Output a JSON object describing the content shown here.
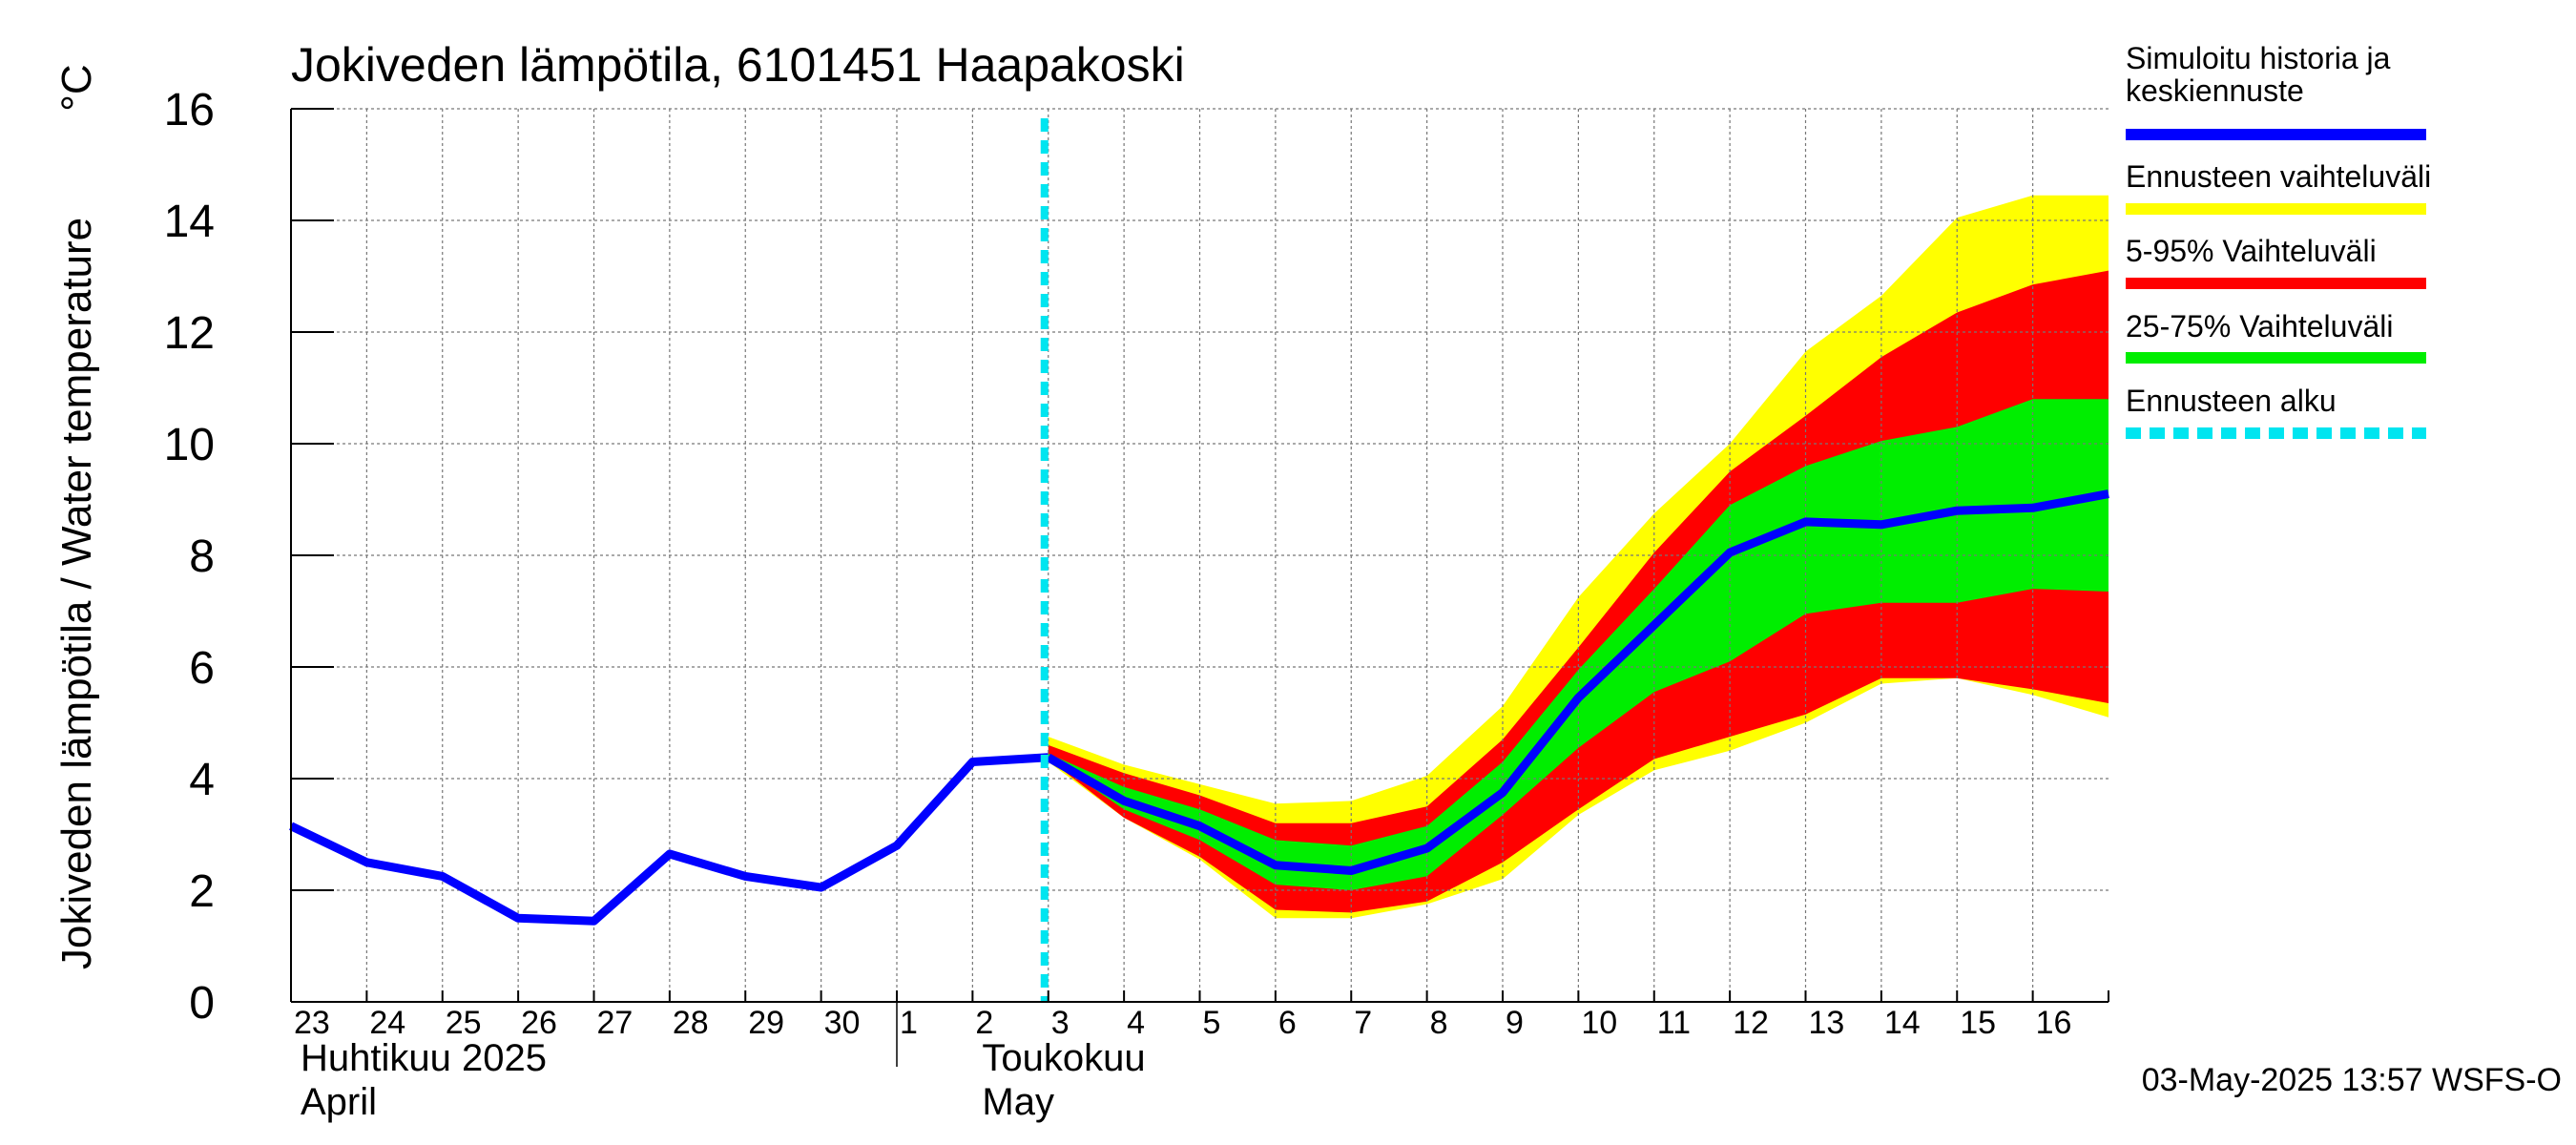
{
  "chart_data": {
    "type": "area",
    "title": "Jokiveden lämpötila, 6101451 Haapakoski",
    "ylabel": "Jokiveden lämpötila / Water temperature",
    "yunit": "°C",
    "ylim": [
      0,
      16
    ],
    "yticks": [
      0,
      2,
      4,
      6,
      8,
      10,
      12,
      14,
      16
    ],
    "grid": true,
    "xlim": [
      0,
      24
    ],
    "day_labels": [
      "23",
      "24",
      "25",
      "26",
      "27",
      "28",
      "29",
      "30",
      "1",
      "2",
      "3",
      "4",
      "5",
      "6",
      "7",
      "8",
      "9",
      "10",
      "11",
      "12",
      "13",
      "14",
      "15",
      "16"
    ],
    "month_labels": [
      {
        "line1": "Huhtikuu  2025",
        "line2": "April",
        "start_day": 0
      },
      {
        "line1": "Toukokuu",
        "line2": "May",
        "start_day": 9
      }
    ],
    "month_separator_day": 8,
    "forecast_start_day": 10,
    "history": {
      "name": "Simuloitu historia ja keskiennuste",
      "x": [
        0,
        1,
        2,
        3,
        4,
        5,
        6,
        7,
        8,
        9,
        10
      ],
      "y": [
        3.15,
        2.5,
        2.25,
        1.5,
        1.45,
        2.65,
        2.25,
        2.05,
        2.8,
        4.3,
        4.38
      ]
    },
    "forecast_x": [
      10,
      11,
      12,
      13,
      14,
      15,
      16,
      17,
      18,
      19,
      20,
      21,
      22,
      23,
      24
    ],
    "median": [
      4.38,
      3.6,
      3.15,
      2.45,
      2.35,
      2.75,
      3.75,
      5.45,
      6.75,
      8.05,
      8.6,
      8.55,
      8.8,
      8.85,
      9.1
    ],
    "bands": [
      {
        "name": "Ennusteen vaihteluväli",
        "color": "#ffff00",
        "lower": [
          4.3,
          3.3,
          2.55,
          1.5,
          1.5,
          1.75,
          2.2,
          3.35,
          4.15,
          4.5,
          5.0,
          5.7,
          5.8,
          5.5,
          5.1
        ],
        "upper": [
          4.75,
          4.25,
          3.9,
          3.55,
          3.6,
          4.05,
          5.3,
          7.25,
          8.75,
          10.0,
          11.65,
          12.65,
          14.05,
          14.45,
          14.45
        ]
      },
      {
        "name": "5-95% Vaihteluväli",
        "color": "#ff0000",
        "lower": [
          4.35,
          3.3,
          2.6,
          1.65,
          1.6,
          1.8,
          2.5,
          3.45,
          4.35,
          4.75,
          5.15,
          5.8,
          5.8,
          5.6,
          5.35
        ],
        "upper": [
          4.6,
          4.1,
          3.7,
          3.2,
          3.2,
          3.5,
          4.7,
          6.35,
          8.05,
          9.5,
          10.5,
          11.55,
          12.35,
          12.85,
          13.1
        ]
      },
      {
        "name": "25-75% Vaihteluväli",
        "color": "#00ee00",
        "lower": [
          4.38,
          3.45,
          2.9,
          2.1,
          2.0,
          2.25,
          3.35,
          4.55,
          5.55,
          6.1,
          6.95,
          7.15,
          7.15,
          7.4,
          7.35
        ],
        "upper": [
          4.45,
          3.85,
          3.45,
          2.9,
          2.8,
          3.15,
          4.3,
          5.95,
          7.4,
          8.9,
          9.6,
          10.05,
          10.3,
          10.8,
          10.8
        ]
      }
    ],
    "legend": [
      {
        "label": "Simuloitu historia ja keskiennuste",
        "color": "#0000ff",
        "style": "solid"
      },
      {
        "label": "Ennusteen vaihteluväli",
        "color": "#ffff00",
        "style": "solid"
      },
      {
        "label": "5-95% Vaihteluväli",
        "color": "#ff0000",
        "style": "solid"
      },
      {
        "label": "25-75% Vaihteluväli",
        "color": "#00ee00",
        "style": "solid"
      },
      {
        "label": "Ennusteen alku",
        "color": "#00e5f0",
        "style": "dashed"
      }
    ],
    "legend_position": "right",
    "footer": "03-May-2025 13:57 WSFS-O"
  }
}
